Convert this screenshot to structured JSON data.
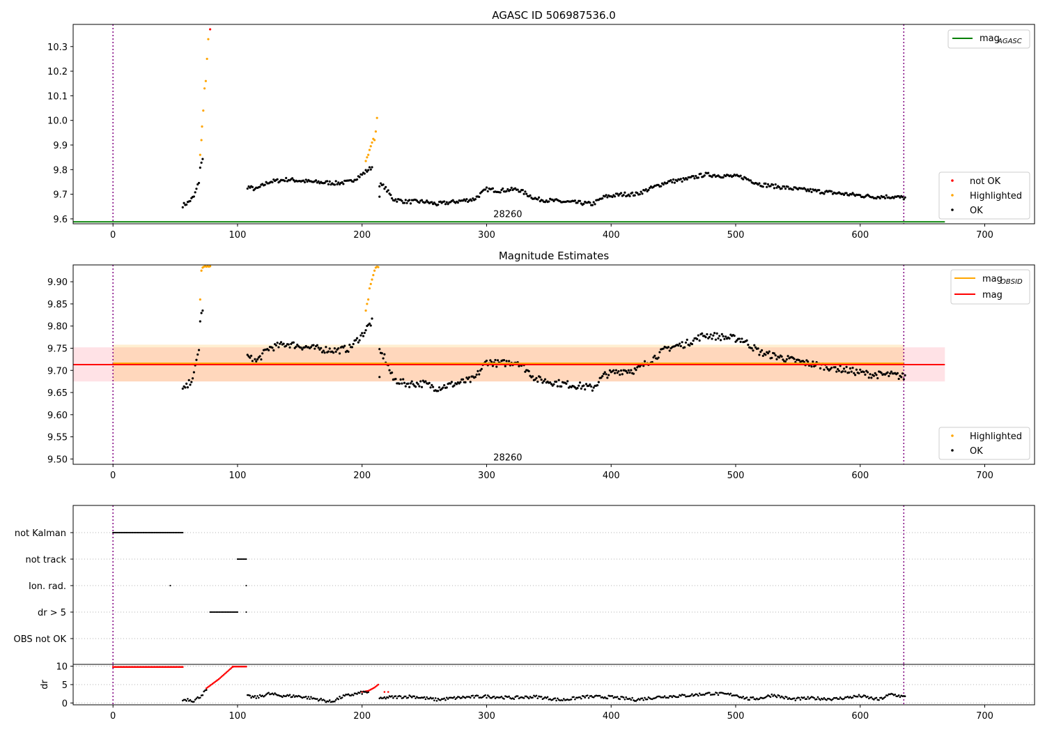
{
  "figure": {
    "background": "#ffffff"
  },
  "chart_data": [
    {
      "id": "p1",
      "type": "scatter",
      "title": "AGASC ID 506987536.0",
      "xlim": [
        -32,
        740
      ],
      "ylim": [
        9.58,
        10.39
      ],
      "xticks": [
        0,
        100,
        200,
        300,
        400,
        500,
        600,
        700
      ],
      "xtick_labels": [
        "0",
        "100",
        "200",
        "300",
        "400",
        "500",
        "600",
        "700"
      ],
      "yticks": [
        9.6,
        9.7,
        9.8,
        9.9,
        10.0,
        10.1,
        10.2,
        10.3
      ],
      "ytick_labels": [
        "9.6",
        "9.7",
        "9.8",
        "9.9",
        "10.0",
        "10.1",
        "10.2",
        "10.3"
      ],
      "obs_boundaries": [
        0,
        635
      ],
      "obsid_label": {
        "text": "28260",
        "x": 317,
        "y": 9.595
      },
      "hlines": [
        {
          "name": "mag_AGASC",
          "y": 9.588,
          "x0": -32,
          "x1": 668,
          "color": "#008000"
        }
      ],
      "legend_lines": [
        {
          "label": "mag",
          "sub": "AGASC",
          "color": "#008000"
        }
      ],
      "legend_points": [
        {
          "label": "not OK",
          "color": "#ff0000"
        },
        {
          "label": "Highlighted",
          "color": "#ffa500"
        },
        {
          "label": "OK",
          "color": "#000000"
        }
      ],
      "series": [
        {
          "name": "OK",
          "color": "#000000",
          "curve": [
            [
              56,
              9.655
            ],
            [
              60,
              9.665
            ],
            [
              65,
              9.69
            ],
            [
              69,
              9.75
            ],
            [
              70,
              9.81
            ],
            [
              72,
              9.84
            ]
          ],
          "curve2": [
            [
              108,
              9.73
            ],
            [
              115,
              9.72
            ],
            [
              125,
              9.75
            ],
            [
              140,
              9.76
            ],
            [
              160,
              9.75
            ],
            [
              180,
              9.745
            ],
            [
              190,
              9.75
            ],
            [
              200,
              9.78
            ],
            [
              205,
              9.8
            ],
            [
              208,
              9.81
            ]
          ],
          "curve3": [
            [
              214,
              9.74
            ],
            [
              218,
              9.73
            ],
            [
              225,
              9.68
            ],
            [
              235,
              9.67
            ],
            [
              250,
              9.67
            ],
            [
              260,
              9.66
            ],
            [
              275,
              9.67
            ],
            [
              290,
              9.68
            ],
            [
              300,
              9.72
            ],
            [
              310,
              9.715
            ],
            [
              325,
              9.72
            ],
            [
              340,
              9.68
            ],
            [
              360,
              9.67
            ],
            [
              375,
              9.665
            ],
            [
              385,
              9.66
            ],
            [
              395,
              9.69
            ],
            [
              410,
              9.7
            ],
            [
              420,
              9.7
            ],
            [
              430,
              9.72
            ],
            [
              445,
              9.75
            ],
            [
              460,
              9.76
            ],
            [
              475,
              9.78
            ],
            [
              490,
              9.775
            ],
            [
              505,
              9.77
            ],
            [
              520,
              9.74
            ],
            [
              535,
              9.73
            ],
            [
              550,
              9.72
            ],
            [
              570,
              9.71
            ],
            [
              590,
              9.7
            ],
            [
              610,
              9.69
            ],
            [
              625,
              9.69
            ],
            [
              636,
              9.685
            ]
          ],
          "noise": 0.008,
          "extra_points": [
            [
              214,
              9.69
            ]
          ]
        },
        {
          "name": "Highlighted",
          "color": "#ffa500",
          "points": [
            [
              70,
              9.86
            ],
            [
              71,
              9.92
            ],
            [
              71.5,
              9.975
            ],
            [
              72.5,
              10.04
            ],
            [
              73.5,
              10.13
            ],
            [
              74.5,
              10.16
            ],
            [
              75.5,
              10.25
            ],
            [
              76.5,
              10.33
            ],
            [
              203,
              9.835
            ],
            [
              204,
              9.85
            ],
            [
              205,
              9.86
            ],
            [
              206,
              9.88
            ],
            [
              207,
              9.895
            ],
            [
              208,
              9.91
            ],
            [
              209,
              9.925
            ],
            [
              210,
              9.92
            ],
            [
              211,
              9.955
            ],
            [
              212,
              10.01
            ]
          ]
        },
        {
          "name": "not OK",
          "color": "#ff0000",
          "points": [
            [
              78,
              10.37
            ]
          ]
        }
      ]
    },
    {
      "id": "p2",
      "type": "scatter",
      "title": "Magnitude Estimates",
      "xlim": [
        -32,
        740
      ],
      "ylim": [
        9.488,
        9.938
      ],
      "xticks": [
        0,
        100,
        200,
        300,
        400,
        500,
        600,
        700
      ],
      "xtick_labels": [
        "0",
        "100",
        "200",
        "300",
        "400",
        "500",
        "600",
        "700"
      ],
      "yticks": [
        9.5,
        9.55,
        9.6,
        9.65,
        9.7,
        9.75,
        9.8,
        9.85,
        9.9
      ],
      "ytick_labels": [
        "9.50",
        "9.55",
        "9.60",
        "9.65",
        "9.70",
        "9.75",
        "9.80",
        "9.85",
        "9.90"
      ],
      "obs_boundaries": [
        0,
        635
      ],
      "obsid_label": {
        "text": "28260",
        "x": 317,
        "y": 9.503
      },
      "bands": [
        {
          "name": "mag",
          "x0": -32,
          "x1": 668,
          "y0": 9.675,
          "y1": 9.752,
          "color": "#ffb6c1",
          "opacity": 0.4
        },
        {
          "name": "mag_OBSID",
          "x0": 0,
          "x1": 635,
          "y0": 9.675,
          "y1": 9.758,
          "color": "#ffa500",
          "opacity": 0.18
        }
      ],
      "hlines": [
        {
          "name": "mag_OBSID",
          "y": 9.716,
          "x0": 0,
          "x1": 635,
          "color": "#ffa500"
        },
        {
          "name": "mag",
          "y": 9.713,
          "x0": -32,
          "x1": 668,
          "color": "#ff0000"
        }
      ],
      "legend_lines": [
        {
          "label": "mag",
          "sub": "OBSID",
          "color": "#ffa500"
        },
        {
          "label": "mag",
          "sub": "",
          "color": "#ff0000"
        }
      ],
      "legend_points": [
        {
          "label": "Highlighted",
          "color": "#ffa500"
        },
        {
          "label": "OK",
          "color": "#000000"
        }
      ],
      "series": [
        {
          "name": "OK",
          "color": "#000000",
          "curve": [
            [
              56,
              9.655
            ],
            [
              60,
              9.665
            ],
            [
              65,
              9.69
            ],
            [
              69,
              9.75
            ],
            [
              70,
              9.81
            ],
            [
              72,
              9.84
            ]
          ],
          "curve2": [
            [
              108,
              9.73
            ],
            [
              115,
              9.72
            ],
            [
              125,
              9.75
            ],
            [
              140,
              9.76
            ],
            [
              160,
              9.75
            ],
            [
              180,
              9.745
            ],
            [
              190,
              9.75
            ],
            [
              200,
              9.78
            ],
            [
              205,
              9.8
            ],
            [
              208,
              9.81
            ]
          ],
          "curve3": [
            [
              214,
              9.74
            ],
            [
              218,
              9.73
            ],
            [
              225,
              9.68
            ],
            [
              235,
              9.67
            ],
            [
              250,
              9.67
            ],
            [
              260,
              9.66
            ],
            [
              275,
              9.67
            ],
            [
              290,
              9.68
            ],
            [
              300,
              9.72
            ],
            [
              310,
              9.715
            ],
            [
              325,
              9.72
            ],
            [
              340,
              9.68
            ],
            [
              360,
              9.67
            ],
            [
              375,
              9.665
            ],
            [
              385,
              9.66
            ],
            [
              395,
              9.69
            ],
            [
              410,
              9.7
            ],
            [
              420,
              9.7
            ],
            [
              430,
              9.72
            ],
            [
              445,
              9.75
            ],
            [
              460,
              9.76
            ],
            [
              475,
              9.78
            ],
            [
              490,
              9.775
            ],
            [
              505,
              9.77
            ],
            [
              520,
              9.74
            ],
            [
              535,
              9.73
            ],
            [
              550,
              9.72
            ],
            [
              570,
              9.71
            ],
            [
              590,
              9.7
            ],
            [
              610,
              9.69
            ],
            [
              625,
              9.69
            ],
            [
              636,
              9.685
            ]
          ],
          "noise": 0.008,
          "extra_points": [
            [
              214,
              9.685
            ]
          ]
        },
        {
          "name": "Highlighted",
          "color": "#ffa500",
          "points": [
            [
              70,
              9.86
            ],
            [
              71,
              9.925
            ],
            [
              72,
              9.932
            ],
            [
              73,
              9.934
            ],
            [
              74,
              9.935
            ],
            [
              75,
              9.934
            ],
            [
              76,
              9.935
            ],
            [
              77,
              9.934
            ],
            [
              78,
              9.935
            ],
            [
              203,
              9.835
            ],
            [
              204,
              9.85
            ],
            [
              205,
              9.86
            ],
            [
              206,
              9.885
            ],
            [
              207,
              9.895
            ],
            [
              208,
              9.905
            ],
            [
              209,
              9.915
            ],
            [
              210,
              9.925
            ],
            [
              211,
              9.932
            ],
            [
              212,
              9.934
            ],
            [
              213,
              9.933
            ]
          ]
        }
      ]
    },
    {
      "id": "p3",
      "type": "scatter",
      "title": "",
      "xlim": [
        -32,
        740
      ],
      "categories": [
        "not Kalman",
        "not track",
        "Ion. rad.",
        "dr > 5",
        "OBS not OK"
      ],
      "obs_boundaries": [
        0,
        635
      ],
      "flags": [
        {
          "row": "not Kalman",
          "ranges": [
            [
              0,
              56
            ]
          ],
          "points": []
        },
        {
          "row": "not track",
          "ranges": [
            [
              100,
              107
            ]
          ],
          "points": []
        },
        {
          "row": "Ion. rad.",
          "ranges": [],
          "points": [
            46,
            107
          ]
        },
        {
          "row": "dr > 5",
          "ranges": [
            [
              78,
              100
            ]
          ],
          "points": [
            107
          ]
        },
        {
          "row": "OBS not OK",
          "ranges": [],
          "points": []
        }
      ]
    },
    {
      "id": "p4",
      "type": "scatter",
      "title": "",
      "ylabel": "dr",
      "xlim": [
        -32,
        740
      ],
      "ylim": [
        -0.5,
        10.5
      ],
      "xticks": [
        0,
        100,
        200,
        300,
        400,
        500,
        600,
        700
      ],
      "xtick_labels": [
        "0",
        "100",
        "200",
        "300",
        "400",
        "500",
        "600",
        "700"
      ],
      "yticks": [
        0,
        5,
        10
      ],
      "ytick_labels": [
        "0",
        "5",
        "10"
      ],
      "obs_boundaries": [
        0,
        635
      ],
      "series": [
        {
          "name": "dr > 5 (capped)",
          "color": "#ff0000",
          "segments": [
            [
              [
                0,
                9.8
              ],
              [
                56,
                9.8
              ]
            ],
            [
              [
                96,
                9.9
              ],
              [
                107,
                9.9
              ]
            ]
          ],
          "ramp": [
            [
              75,
              4.0
            ],
            [
              85,
              6.5
            ],
            [
              96,
              9.8
            ]
          ],
          "tail": [
            [
              200,
              3.0
            ],
            [
              205,
              3.3
            ],
            [
              210,
              4.2
            ],
            [
              213,
              5.0
            ]
          ],
          "extra": [
            [
              218,
              3.0
            ],
            [
              221,
              3.0
            ]
          ]
        },
        {
          "name": "dr",
          "color": "#000000",
          "curve": [
            [
              56,
              0.8
            ],
            [
              60,
              1.0
            ],
            [
              65,
              0.6
            ],
            [
              70,
              1.8
            ],
            [
              75,
              3.5
            ],
            [
              108,
              1.8
            ],
            [
              115,
              1.5
            ],
            [
              125,
              2.5
            ],
            [
              135,
              2.0
            ],
            [
              150,
              1.8
            ],
            [
              165,
              1.0
            ],
            [
              175,
              0.3
            ],
            [
              185,
              1.8
            ],
            [
              200,
              2.8
            ],
            [
              205,
              3.0
            ],
            [
              214,
              1.0
            ],
            [
              220,
              1.5
            ],
            [
              240,
              1.8
            ],
            [
              260,
              0.9
            ],
            [
              280,
              1.5
            ],
            [
              300,
              1.8
            ],
            [
              320,
              1.4
            ],
            [
              340,
              1.7
            ],
            [
              360,
              0.8
            ],
            [
              380,
              1.7
            ],
            [
              400,
              1.6
            ],
            [
              420,
              0.9
            ],
            [
              440,
              1.7
            ],
            [
              460,
              2.0
            ],
            [
              480,
              2.6
            ],
            [
              500,
              2.2
            ],
            [
              510,
              1.1
            ],
            [
              520,
              1.3
            ],
            [
              530,
              2.2
            ],
            [
              545,
              1.0
            ],
            [
              560,
              1.3
            ],
            [
              580,
              1.1
            ],
            [
              600,
              1.9
            ],
            [
              615,
              0.9
            ],
            [
              625,
              2.4
            ],
            [
              636,
              1.6
            ]
          ],
          "noise": 0.4
        }
      ]
    }
  ]
}
